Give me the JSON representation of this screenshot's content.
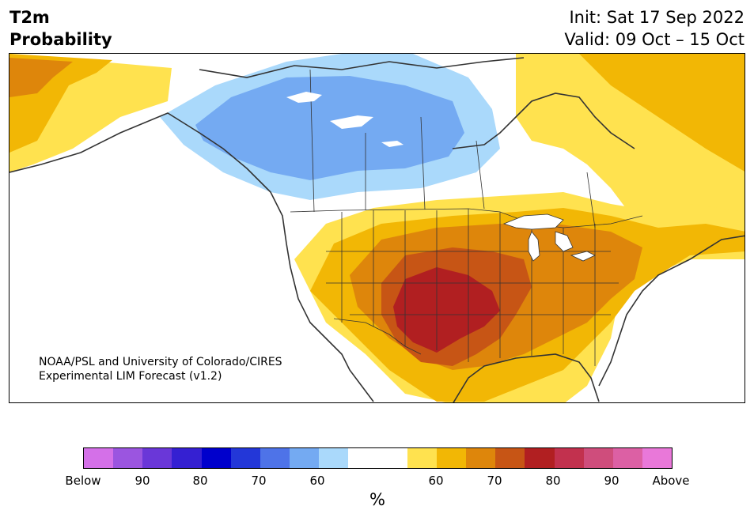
{
  "title": {
    "line1": "T2m",
    "line2": "Probability"
  },
  "header_right": {
    "init": "Init: Sat 17 Sep 2022",
    "valid": "Valid: 09 Oct – 15 Oct"
  },
  "credit": {
    "line1": "NOAA/PSL and University of Colorado/CIRES",
    "line2": "Experimental LIM Forecast (v1.2)"
  },
  "colorbar": {
    "colors": [
      "#d470e8",
      "#9b55e0",
      "#6a37d8",
      "#3520d2",
      "#0000cc",
      "#2337d8",
      "#4e73e8",
      "#74aaf2",
      "#aad9fb",
      "#ffffff",
      "#ffffff",
      "#ffe24f",
      "#f2b705",
      "#de860b",
      "#c75515",
      "#b11f21",
      "#c2314e",
      "#cf4d7c",
      "#dc60a4",
      "#e978d9"
    ],
    "tick_labels": [
      "Below",
      "90",
      "80",
      "70",
      "60",
      "60",
      "70",
      "80",
      "90",
      "Above"
    ],
    "unit": "%"
  },
  "map_colors": {
    "land": "#ffffff",
    "borders": "#333333",
    "prob_60_below": "#aad9fb",
    "prob_70_below": "#74aaf2",
    "prob_60_above": "#ffe24f",
    "prob_70_above": "#f2b705",
    "prob_80_above": "#de860b",
    "prob_90_above": "#c75515",
    "prob_max_above": "#b11f21"
  }
}
